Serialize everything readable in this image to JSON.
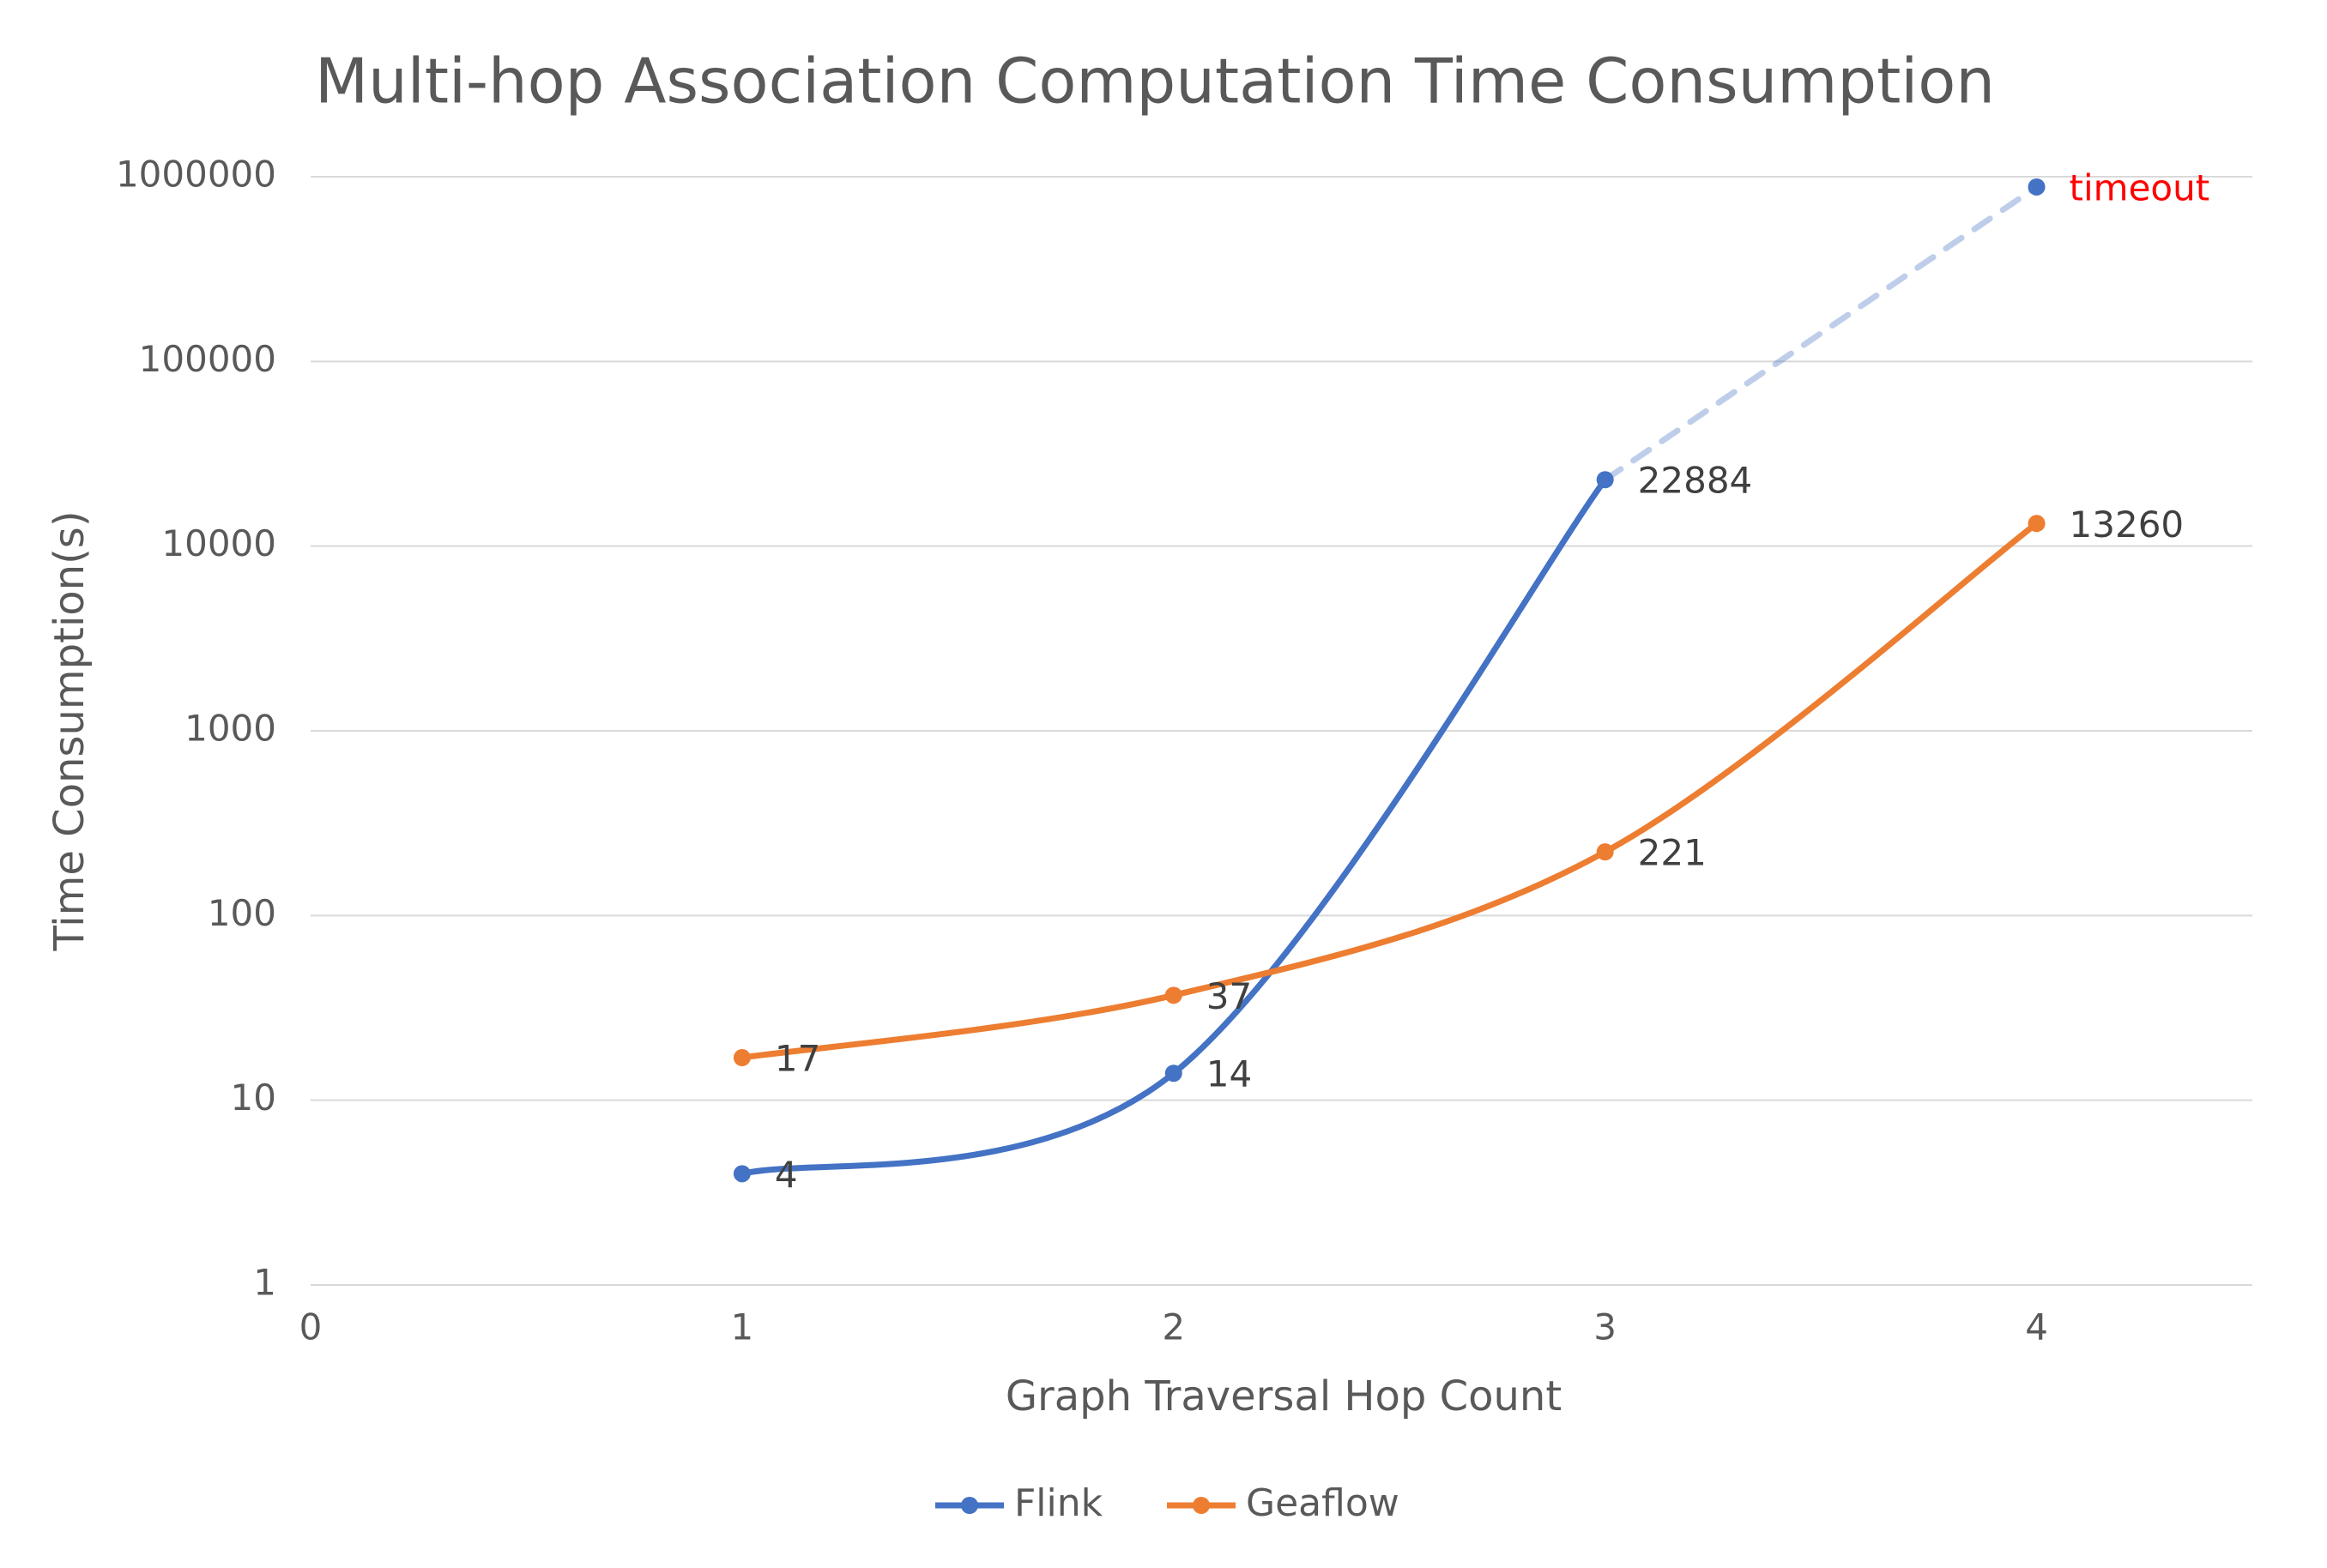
{
  "chart_data": {
    "type": "line",
    "title": "Multi-hop Association Computation Time Consumption",
    "x_label": "Graph Traversal Hop Count",
    "y_label": "Time Consumption(s)",
    "x": [
      1,
      2,
      3,
      4
    ],
    "series": [
      {
        "name": "Flink",
        "color": "#4472c4",
        "values": [
          4,
          14,
          22884,
          880000
        ],
        "value_labels": [
          "4",
          "14",
          "22884",
          "timeout"
        ],
        "value_label_colors": [
          "#404040",
          "#404040",
          "#404040",
          "#ff0000"
        ]
      },
      {
        "name": "Geaflow",
        "color": "#ed7d31",
        "values": [
          17,
          37,
          221,
          13260
        ],
        "value_labels": [
          "17",
          "37",
          "221",
          "13260"
        ],
        "value_label_colors": [
          "#404040",
          "#404040",
          "#404040",
          "#404040"
        ]
      }
    ],
    "xlim": [
      0,
      4.5
    ],
    "xticks": [
      0,
      1,
      2,
      3,
      4
    ],
    "ylim": [
      1,
      1000000
    ],
    "yticks": [
      1,
      10,
      100,
      1000,
      10000,
      100000,
      1000000
    ],
    "y_scale": "log",
    "grid": true,
    "legend": "bottom"
  }
}
